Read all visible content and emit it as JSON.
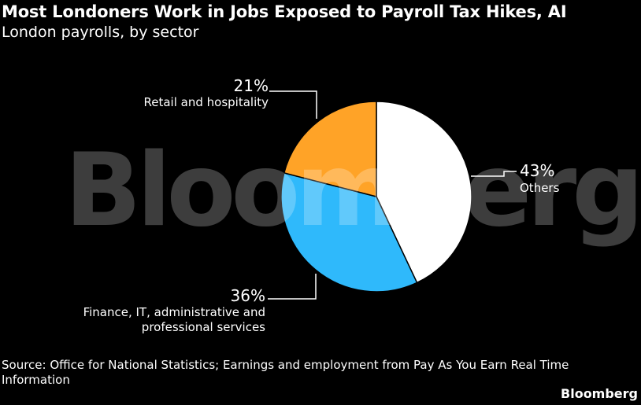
{
  "header": {
    "title": "Most Londoners Work in Jobs Exposed to Payroll Tax Hikes, AI",
    "subtitle": "London payrolls, by sector"
  },
  "footer": {
    "source": "Source: Office for National Statistics; Earnings and employment from Pay As You Earn Real Time Information",
    "brand": "Bloomberg"
  },
  "watermark": "Bloomberg",
  "chart_data": {
    "type": "pie",
    "title": "Most Londoners Work in Jobs Exposed to Payroll Tax Hikes, AI",
    "subtitle": "London payrolls, by sector",
    "slices": [
      {
        "label": "Others",
        "value": 43,
        "display": "43%",
        "color": "#ffffff",
        "label_lines": [
          "Others"
        ]
      },
      {
        "label": "Finance, IT, administrative and professional services",
        "value": 36,
        "display": "36%",
        "color": "#2fb9fb",
        "label_lines": [
          "Finance, IT, administrative and",
          "professional services"
        ]
      },
      {
        "label": "Retail and hospitality",
        "value": 21,
        "display": "21%",
        "color": "#ffa327",
        "label_lines": [
          "Retail and hospitality"
        ]
      }
    ],
    "start_angle": "12 o'clock",
    "direction": "clockwise",
    "legend": "none"
  }
}
